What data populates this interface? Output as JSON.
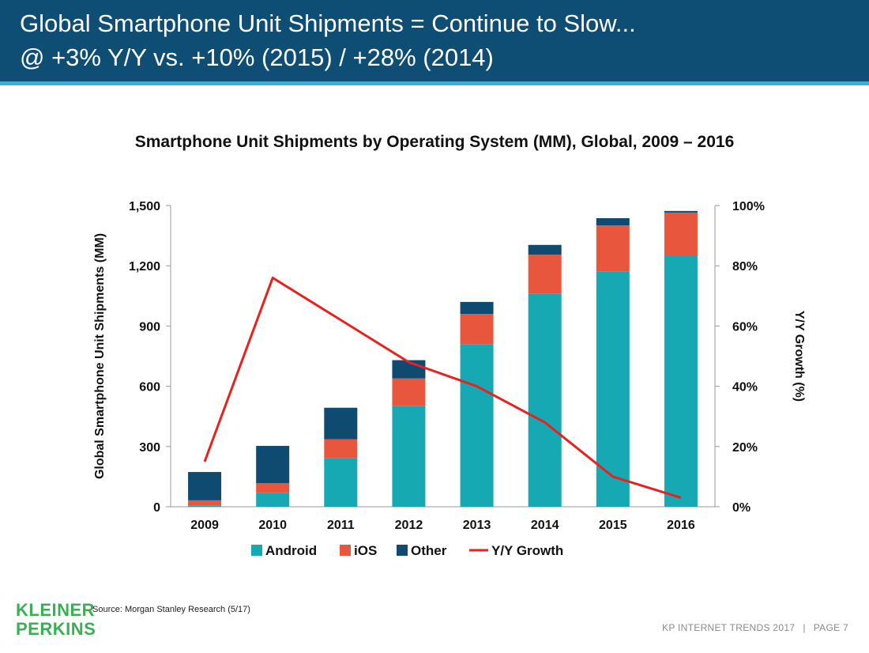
{
  "header": {
    "title_line1": "Global Smartphone Unit Shipments = Continue to Slow...",
    "title_line2": "@ +3% Y/Y vs. +10% (2015) / +28% (2014)"
  },
  "chart_data": {
    "type": "bar",
    "stacked": true,
    "title": "Smartphone Unit Shipments by Operating System (MM), Global, 2009 – 2016",
    "ylabel": "Global Smartphone Unit Shipments (MM)",
    "y2label": "Y/Y Growth (%)",
    "ylim": [
      0,
      1500
    ],
    "y_ticks": [
      "0",
      "300",
      "600",
      "900",
      "1,200",
      "1,500"
    ],
    "y2lim": [
      0,
      100
    ],
    "y2_ticks": [
      "0%",
      "20%",
      "40%",
      "60%",
      "80%",
      "100%"
    ],
    "categories": [
      "2009",
      "2010",
      "2011",
      "2012",
      "2013",
      "2014",
      "2015",
      "2016"
    ],
    "series": [
      {
        "name": "Android",
        "color": "#17a9b3",
        "values": [
          7,
          70,
          243,
          503,
          808,
          1062,
          1170,
          1250
        ]
      },
      {
        "name": "iOS",
        "color": "#e8573d",
        "values": [
          25,
          47,
          93,
          136,
          152,
          193,
          231,
          215
        ]
      },
      {
        "name": "Other",
        "color": "#0f4a70",
        "values": [
          141,
          186,
          157,
          91,
          60,
          49,
          36,
          8
        ]
      }
    ],
    "line_series": {
      "name": "Y/Y Growth",
      "color": "#e8211e",
      "axis": "right",
      "values": [
        15,
        76,
        62,
        48,
        40,
        28,
        10,
        3
      ]
    },
    "grid": false,
    "legend_position": "bottom"
  },
  "source": "Source: Morgan Stanley Research (5/17)",
  "logo": {
    "line1": "KLEINER",
    "line2": "PERKINS"
  },
  "footer": {
    "left": "KP INTERNET TRENDS 2017",
    "separator": "|",
    "right": "PAGE 7"
  }
}
